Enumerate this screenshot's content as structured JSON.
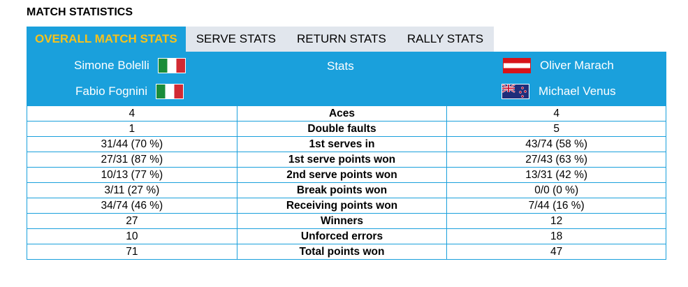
{
  "page": {
    "title": "MATCH STATISTICS"
  },
  "tabs": [
    {
      "label": "OVERALL MATCH STATS",
      "active": true
    },
    {
      "label": "SERVE STATS",
      "active": false
    },
    {
      "label": "RETURN STATS",
      "active": false
    },
    {
      "label": "RALLY STATS",
      "active": false
    }
  ],
  "teams": {
    "left": [
      {
        "name": "Simone Bolelli",
        "flag": "italy-flag-icon"
      },
      {
        "name": "Fabio Fognini",
        "flag": "italy-flag-icon"
      }
    ],
    "center_label": "Stats",
    "right": [
      {
        "name": "Oliver Marach",
        "flag": "austria-flag-icon"
      },
      {
        "name": "Michael Venus",
        "flag": "new-zealand-flag-icon"
      }
    ]
  },
  "colors": {
    "accent": "#1aa0dc",
    "active_tab_text": "#f7c21b",
    "tab_bg": "#e1e6ed"
  },
  "stats": [
    {
      "left": "4",
      "label": "Aces",
      "right": "4"
    },
    {
      "left": "1",
      "label": "Double faults",
      "right": "5"
    },
    {
      "left": "31/44 (70 %)",
      "label": "1st serves in",
      "right": "43/74 (58 %)"
    },
    {
      "left": "27/31 (87 %)",
      "label": "1st serve points won",
      "right": "27/43 (63 %)"
    },
    {
      "left": "10/13 (77 %)",
      "label": "2nd serve points won",
      "right": "13/31 (42 %)"
    },
    {
      "left": "3/11 (27 %)",
      "label": "Break points won",
      "right": "0/0 (0 %)"
    },
    {
      "left": "34/74 (46 %)",
      "label": "Receiving points won",
      "right": "7/44 (16 %)"
    },
    {
      "left": "27",
      "label": "Winners",
      "right": "12"
    },
    {
      "left": "10",
      "label": "Unforced errors",
      "right": "18"
    },
    {
      "left": "71",
      "label": "Total points won",
      "right": "47"
    }
  ]
}
